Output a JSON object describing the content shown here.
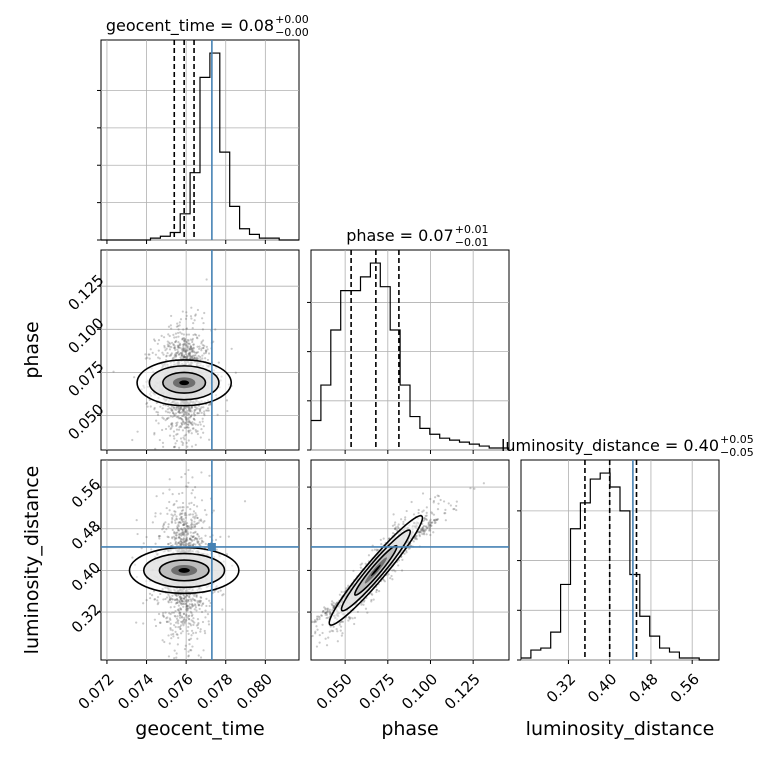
{
  "chart_data": {
    "type": "corner",
    "parameters": [
      "geocent_time",
      "phase",
      "luminosity_distance"
    ],
    "truths": {
      "geocent_time": 0.0773,
      "phase": null,
      "luminosity_distance": 0.445
    },
    "truth_color": "#4682b4",
    "marginals": [
      {
        "parameter": "geocent_time",
        "title_main": "geocent_time = 0.08",
        "title_plus": "+0.00",
        "title_minus": "−0.00",
        "range": [
          0.0717,
          0.0817
        ],
        "quantiles": [
          0.0754,
          0.0759,
          0.0764
        ],
        "bin_width": 0.0005,
        "bin_counts": [
          0,
          0,
          0,
          0,
          0,
          1,
          2,
          4,
          14,
          36,
          87,
          100,
          47,
          18,
          6,
          3,
          1,
          1,
          0,
          0
        ],
        "yticks": [
          0,
          20,
          40,
          60,
          80
        ],
        "xticks": [
          "0.072",
          "0.074",
          "0.076",
          "0.078",
          "0.080"
        ]
      },
      {
        "parameter": "phase",
        "title_main": "phase = 0.07",
        "title_plus": "+0.01",
        "title_minus": "−0.01",
        "range": [
          0.03,
          0.146
        ],
        "quantiles": [
          0.0535,
          0.068,
          0.0815
        ],
        "bin_width": 0.0058,
        "bin_counts": [
          15,
          33,
          61,
          81,
          81,
          88,
          95,
          83,
          61,
          33,
          17,
          11,
          8,
          6,
          5,
          4,
          3,
          2,
          1,
          1
        ],
        "yticks": [
          0,
          25,
          50,
          75
        ],
        "xticks": [
          "0.050",
          "0.075",
          "0.100",
          "0.125"
        ]
      },
      {
        "parameter": "luminosity_distance",
        "title_main": "luminosity_distance = 0.40",
        "title_plus": "+0.05",
        "title_minus": "−0.05",
        "range": [
          0.228,
          0.612
        ],
        "quantiles": [
          0.352,
          0.4,
          0.452
        ],
        "bin_width": 0.0192,
        "bin_counts": [
          1,
          5,
          6,
          14,
          38,
          66,
          79,
          91,
          94,
          87,
          75,
          43,
          22,
          12,
          6,
          4,
          1,
          1,
          0,
          0
        ],
        "yticks": [
          0,
          25,
          50,
          75
        ],
        "xticks": [
          "0.32",
          "0.40",
          "0.48",
          "0.56"
        ]
      }
    ],
    "joint": [
      {
        "x": "geocent_time",
        "y": "phase",
        "x_range": [
          0.0717,
          0.0817
        ],
        "y_range": [
          0.03,
          0.146
        ],
        "mean": [
          0.0759,
          0.069
        ],
        "std": [
          0.00055,
          0.013
        ],
        "corr": 0.0,
        "yticks": [
          "0.050",
          "0.075",
          "0.100",
          "0.125"
        ]
      },
      {
        "x": "geocent_time",
        "y": "luminosity_distance",
        "x_range": [
          0.0717,
          0.0817
        ],
        "y_range": [
          0.228,
          0.612
        ],
        "mean": [
          0.0759,
          0.4
        ],
        "std": [
          0.00055,
          0.05
        ],
        "corr": 0.0,
        "yticks": [
          "0.32",
          "0.40",
          "0.48",
          "0.56"
        ]
      },
      {
        "x": "phase",
        "y": "luminosity_distance",
        "x_range": [
          0.03,
          0.146
        ],
        "y_range": [
          0.228,
          0.612
        ],
        "mean": [
          0.068,
          0.4
        ],
        "std": [
          0.013,
          0.05
        ],
        "corr": 0.96
      }
    ],
    "xlabels": [
      "geocent_time",
      "phase",
      "luminosity_distance"
    ],
    "ylabels": [
      "phase",
      "luminosity_distance"
    ],
    "grid": true
  }
}
